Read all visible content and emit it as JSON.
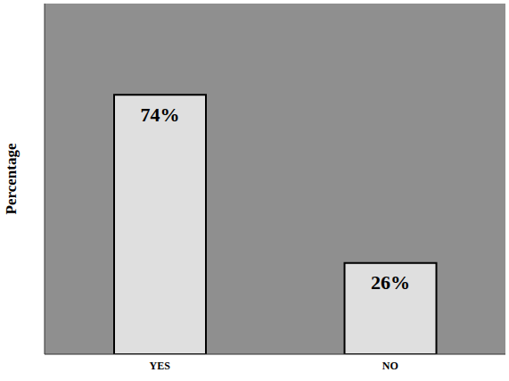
{
  "chart_data": {
    "type": "bar",
    "ylabel": "Percentage",
    "categories": [
      "YES",
      "NO"
    ],
    "values": [
      74,
      26
    ],
    "value_labels": [
      "74%",
      "26%"
    ],
    "data_labels": true,
    "color": "#e8e8e8",
    "ylim": [
      0,
      100
    ],
    "grid": false,
    "tick_labels": "x"
  }
}
